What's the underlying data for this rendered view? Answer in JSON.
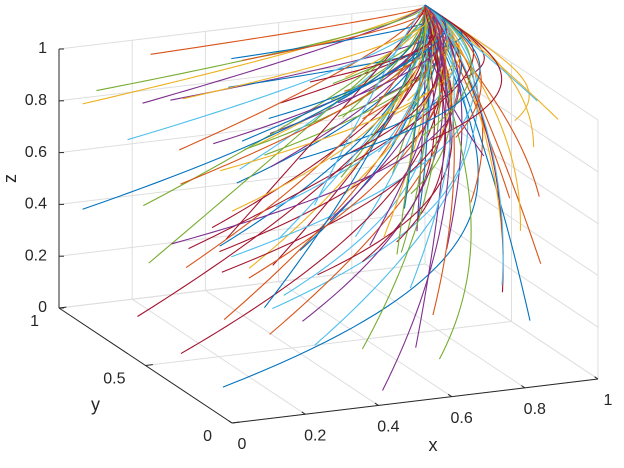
{
  "chart_data": {
    "type": "line",
    "projection": "3d",
    "title": "",
    "xlabel": "x",
    "ylabel": "y",
    "zlabel": "z",
    "xlim": [
      0,
      1
    ],
    "ylim": [
      0,
      1
    ],
    "zlim": [
      0,
      1
    ],
    "x_ticks": [
      0,
      0.2,
      0.4,
      0.6,
      0.8,
      1
    ],
    "x_tick_labels": [
      "0",
      "0.2",
      "0.4",
      "0.6",
      "0.8",
      "1"
    ],
    "y_ticks": [
      0,
      0.5,
      1
    ],
    "y_tick_labels": [
      "0",
      "0.5",
      "1"
    ],
    "z_ticks": [
      0,
      0.2,
      0.4,
      0.6,
      0.8,
      1
    ],
    "z_tick_labels": [
      "0",
      "0.2",
      "0.4",
      "0.6",
      "0.8",
      "1"
    ],
    "grid": true,
    "box": true,
    "legend": "none",
    "trajectory_count": 120,
    "convergence_point": {
      "x": 1,
      "y": 1,
      "z": 1
    },
    "description": "",
    "colors": [
      "#0072BD",
      "#D95319",
      "#EDB120",
      "#7E2F8E",
      "#77AC30",
      "#4DBEEE",
      "#A2142F"
    ]
  }
}
